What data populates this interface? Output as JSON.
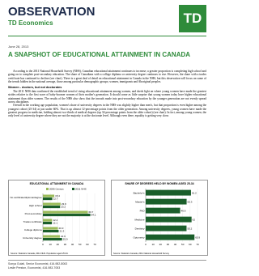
{
  "header": {
    "title": "OBSERVATION",
    "subtitle": "TD Economics",
    "logo": "TD"
  },
  "date": "June 28, 2013",
  "headline": "A SNAPSHOT OF EDUCATIONAL ATTAINMENT IN CANADA",
  "paragraphs": [
    "According to the 2011 National Household Survey (NHS), Canadian educational attainment continues to increase; a greater proportion is completing high school and going on to complete post-secondary education. The share of Canadians with a college diploma or university degree continues to rise. However, the share with a trades certificate has continued to decline (see chart). There is a great deal of detail on educational attainment in Canada in the NHS, but this observation will focus on some of the trends hidden in the national average, those among particular demographic groups; women, immigrants and Aboriginal peoples.",
    "The 2011 NHS data confirmed the established trend of rising educational attainment among women, and sheds light on where young women have made the greatest strides relative to the first wave of baby-boomer women of their mother's generation. It should come as little surprise that young women today have higher educational attainment than older women. The results of the NHS also show that the inroads made into post-secondary education by the younger generation are not evenly spread across disciplines.",
    "Overall in the working age population, women's share of university degrees in the NHS was slightly higher than men's, but that proportion is even higher among the youngest cohort (25-34) at just under 60%. That is up almost 12-percentage points from the older generation. Among university degrees, young women have made the greatest progress in medicine, holding almost two-thirds of medical degrees (up 34 percentage points from the older cohort) (see chart). In fact, among young women, the only level of university degree where they are not the majority is at the doctorate level. Although even there, equality is getting very close."
  ],
  "section_heading": "Women - doctors, but not doctorates",
  "footer": [
    "Sonya Gulati, Senior Economist, 416-982-8063",
    "Leslie Preston, Economist, 416-983-7053"
  ],
  "chart_data": [
    {
      "type": "hbar",
      "title": "EDUCATIONAL ATTAINMENT IN CANADA",
      "categories": [
        "No certificate/diploma/degree",
        "High school",
        "Post-secondary",
        "Trades certificate",
        "College diploma",
        "University degree"
      ],
      "series": [
        {
          "name": "2006 Census",
          "color": "#9bbb59",
          "values": [
            15.4,
            23.9,
            60.7,
            12.4,
            20.3,
            22.9
          ]
        },
        {
          "name": "2011 NHS",
          "color": "#1a5e2a",
          "values": [
            12.7,
            23.2,
            64.1,
            12.1,
            21.3,
            25.9
          ]
        }
      ],
      "xlim": [
        0,
        70
      ],
      "xticks": [
        0,
        10,
        20,
        30,
        40,
        50,
        60,
        70
      ],
      "source": "Source: Statistics Canada, 2011 NHS. Population aged 25-64."
    },
    {
      "type": "hbar",
      "title": "SHARE OF DEGREES HELD BY WOMEN AGED 25-34",
      "categories": [
        "Bachelor's",
        "Master's",
        "PhD",
        "Medicine",
        "Dentistry",
        "Optometry"
      ],
      "color": "#1a5e2a",
      "values": [
        61.2,
        55.3,
        46.6,
        62.0,
        55.2,
        65.9
      ],
      "xlim": [
        0,
        70
      ],
      "xticks": [
        0,
        10,
        20,
        30,
        40,
        50,
        60,
        70
      ],
      "source": "Source: Statistics Canada, 2011 National Household Survey"
    }
  ]
}
